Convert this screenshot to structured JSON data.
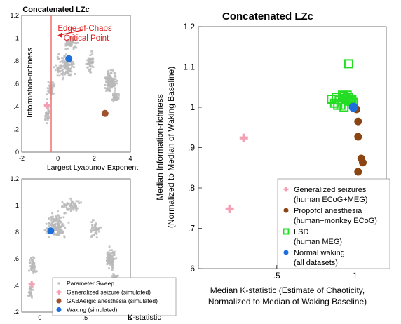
{
  "colors": {
    "sweep": "#b8b8b8",
    "seizure": "#f4a0b4",
    "propofol": "#8b4513",
    "gaba": "#a0522d",
    "lsd": "#22dd22",
    "waking": "#1e6fd9",
    "critical_line": "#f27878",
    "annotation": "#e02020",
    "axis": "#333333"
  },
  "chart_data": [
    {
      "id": "top_left",
      "type": "scatter",
      "title": "Concatenated LZc",
      "xlabel": "Largest Lyapunov Exponent",
      "ylabel": "Information-richness",
      "xlim": [
        -2,
        4
      ],
      "ylim": [
        0,
        1.2
      ],
      "xticks": [
        -2,
        0,
        2,
        4
      ],
      "yticks": [
        0,
        0.2,
        0.4,
        0.6,
        0.8,
        1,
        1.2
      ],
      "vline_x": 0,
      "annotation": [
        "Edge-of-Chaos",
        "Critical Point"
      ],
      "points": {
        "seizure": {
          "x": -0.6,
          "y": 0.41
        },
        "gaba": {
          "x": 2.6,
          "y": 0.34
        },
        "waking": {
          "x": 0.6,
          "y": 0.82
        }
      }
    },
    {
      "id": "bottom_left",
      "type": "scatter",
      "xlabel": "K-statistic",
      "xlim": [
        -0.2,
        1.0
      ],
      "ylim": [
        0.2,
        1.2
      ],
      "xticks": [
        0,
        0.5,
        1
      ],
      "yticks": [
        0.2,
        0.4,
        0.6,
        0.8,
        1,
        1.2
      ],
      "points": {
        "seizure": {
          "x": -0.09,
          "y": 0.41
        },
        "gaba": {
          "x": 0.88,
          "y": 0.34
        },
        "waking": {
          "x": 0.12,
          "y": 0.81
        }
      },
      "legend": [
        {
          "marker": "sweep",
          "label": "Parameter Sweep"
        },
        {
          "marker": "seizure",
          "label": "Generalized seizure (simulated)"
        },
        {
          "marker": "gaba",
          "label": "GABAergic anesthesia (simulated)"
        },
        {
          "marker": "waking",
          "label": "Waking (simulated)"
        }
      ]
    },
    {
      "id": "right",
      "type": "scatter",
      "title": "Concatenated LZc",
      "xlabel": [
        "Median K-statistic  (Estimate of Chaoticity,",
        "Normalized to Median of Waking Baseline)"
      ],
      "ylabel": [
        "Median Information-richness",
        "(Normalized to Median of Waking Baseline)"
      ],
      "xlim": [
        0,
        1.2
      ],
      "ylim": [
        0.6,
        1.2
      ],
      "xticks": [
        0.5,
        1
      ],
      "yticks": [
        0.6,
        0.7,
        0.8,
        0.9,
        1,
        1.1,
        1.2
      ],
      "series": [
        {
          "key": "seizure",
          "x": [
            0.29,
            0.2,
            0.59
          ],
          "y": [
            0.924,
            0.748,
            0.742
          ]
        },
        {
          "key": "propofol",
          "x": [
            1.01,
            1.02,
            1.02,
            1.04,
            1.05,
            1.02
          ],
          "y": [
            0.995,
            0.965,
            0.927,
            0.873,
            0.863,
            0.84
          ]
        },
        {
          "key": "lsd",
          "x": [
            0.85,
            0.88,
            0.9,
            0.92,
            0.94,
            0.96,
            0.98,
            0.87,
            0.91,
            0.95,
            0.99,
            0.93,
            0.97,
            0.89,
            0.93,
            0.96
          ],
          "y": [
            1.02,
            1.025,
            1.018,
            1.03,
            1.022,
            1.015,
            1.02,
            1.01,
            1.005,
            1.03,
            1.012,
            1.028,
            1.018,
            1.005,
            1.0,
            1.025
          ]
        },
        {
          "key": "lsd_outlier",
          "x": [
            0.96
          ],
          "y": [
            1.108
          ]
        },
        {
          "key": "waking",
          "x": [
            0.99
          ],
          "y": [
            1.0
          ]
        }
      ],
      "legend": [
        {
          "marker": "seizure",
          "label": [
            "Generalized seizures",
            "(human ECoG+MEG)"
          ]
        },
        {
          "marker": "propofol",
          "label": [
            "Propofol anesthesia",
            "(human+monkey ECoG)"
          ]
        },
        {
          "marker": "lsd",
          "label": [
            "LSD",
            "(human MEG)"
          ]
        },
        {
          "marker": "waking",
          "label": [
            "Normal waking",
            "(all datasets)"
          ]
        }
      ]
    }
  ]
}
